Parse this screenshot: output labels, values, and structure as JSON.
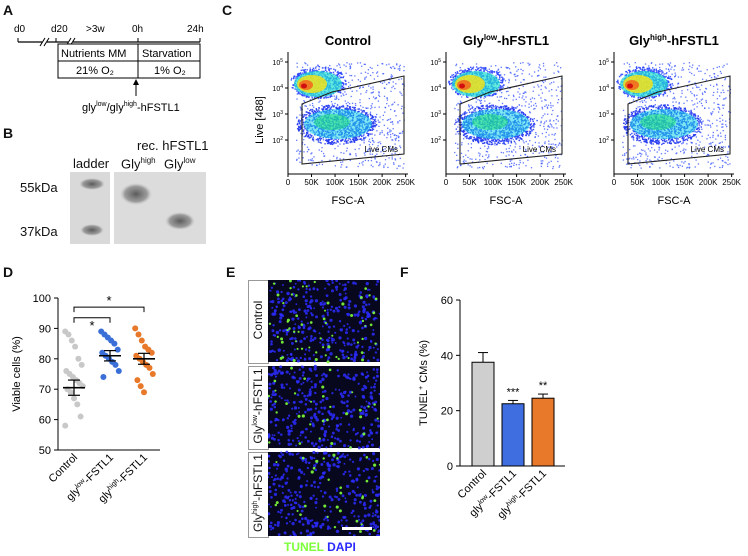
{
  "panels": {
    "A": "A",
    "B": "B",
    "C": "C",
    "D": "D",
    "E": "E",
    "F": "F"
  },
  "timeline": {
    "ticks": [
      "d0",
      "d20",
      ">3w",
      "0h",
      "24h"
    ],
    "phase1": "Nutrients MM",
    "phase2": "Starvation",
    "oxygen1": "21% O₂",
    "oxygen2": "1% O₂",
    "treatment_prefix": "gly",
    "treatment_sup1": "low",
    "treatment_mid": "/gly",
    "treatment_sup2": "high",
    "treatment_suffix": "-hFSTL1"
  },
  "blot": {
    "header": "rec. hFSTL1",
    "ladder": "ladder",
    "lane_high_base": "Gly",
    "lane_high_sup": "high",
    "lane_low_base": "Gly",
    "lane_low_sup": "low",
    "mw1": "55kDa",
    "mw2": "37kDa"
  },
  "flow": {
    "ylabel": "Live [488]",
    "xlabel": "FSC-A",
    "gate_label": "Live CMs",
    "xticks": [
      "0",
      "50K",
      "100K",
      "150K",
      "200K",
      "250K"
    ],
    "yticks_exp": [
      "5",
      "4",
      "3",
      "2"
    ],
    "ytick_base": "10",
    "panels": [
      {
        "title_base": "Control",
        "title_sup": "",
        "title_suffix": ""
      },
      {
        "title_base": "Gly",
        "title_sup": "low",
        "title_suffix": "-hFSTL1"
      },
      {
        "title_base": "Gly",
        "title_sup": "high",
        "title_suffix": "-hFSTL1"
      }
    ]
  },
  "chart_data": [
    {
      "type": "scatter",
      "ylabel": "Viable cells (%)",
      "ylim": [
        50,
        100
      ],
      "yticks": [
        "50",
        "60",
        "70",
        "80",
        "90",
        "100"
      ],
      "categories": [
        {
          "base": "Control",
          "sup": "",
          "suffix": ""
        },
        {
          "base": "gly",
          "sup": "low",
          "suffix": "-FSTL1"
        },
        {
          "base": "gly",
          "sup": "high",
          "suffix": "-FSTL1"
        }
      ],
      "colors": [
        "#c8c8c8",
        "#3a6fd8",
        "#e8782a"
      ],
      "means": [
        70.5,
        81,
        80
      ],
      "sem": [
        2.5,
        1.7,
        1.8
      ],
      "points": [
        [
          89,
          88,
          86,
          84,
          80,
          78,
          76,
          75,
          74,
          73,
          72,
          71,
          70,
          69,
          67,
          65,
          61,
          58
        ],
        [
          89,
          88,
          87,
          86,
          85,
          83,
          82,
          81,
          80,
          79,
          78,
          76,
          74
        ],
        [
          90,
          88,
          86,
          84,
          83,
          82,
          81,
          80,
          79,
          78,
          77,
          75,
          73,
          71,
          69
        ]
      ],
      "significance": [
        "*",
        "*"
      ]
    },
    {
      "type": "bar",
      "ylabel_base": "TUNEL",
      "ylabel_sup": "+",
      "ylabel_suffix": " CMs (%)",
      "ylim": [
        0,
        60
      ],
      "yticks": [
        "0",
        "20",
        "40",
        "60"
      ],
      "categories": [
        {
          "base": "Control",
          "sup": "",
          "suffix": ""
        },
        {
          "base": "gly",
          "sup": "low",
          "suffix": "-FSTL1"
        },
        {
          "base": "gly",
          "sup": "high",
          "suffix": "-FSTL1"
        }
      ],
      "values": [
        37.5,
        22.5,
        24.5
      ],
      "errors": [
        3.5,
        1.2,
        1.5
      ],
      "colors": [
        "#cfcfcf",
        "#3f6ee0",
        "#e8782a"
      ],
      "significance": [
        "",
        "***",
        "**"
      ]
    }
  ],
  "micro": {
    "rows": [
      {
        "base": "Control",
        "sup": "",
        "suffix": ""
      },
      {
        "base": "Gly",
        "sup": "low",
        "suffix": "-hFSTL1"
      },
      {
        "base": "Gly",
        "sup": "high",
        "suffix": "-hFSTL1"
      }
    ],
    "legend_tunel": "TUNEL",
    "legend_dapi": "DAPI",
    "tunel_color": "#7dff3a",
    "dapi_color": "#2a2aff"
  }
}
